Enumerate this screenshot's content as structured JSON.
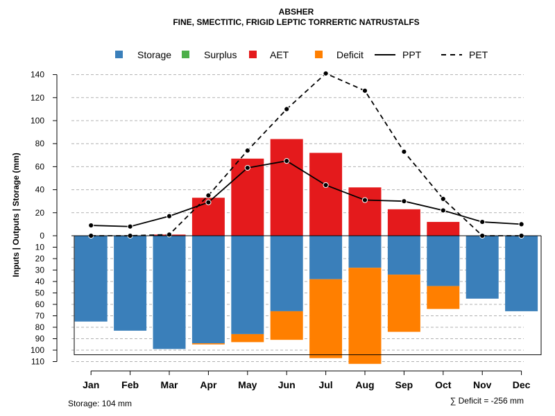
{
  "title": "ABSHER",
  "subtitle": "FINE, SMECTITIC, FRIGID LEPTIC TORRERTIC NATRUSTALFS",
  "ylabel": "Inputs | Outputs | Storage    (mm)",
  "storage_note": "Storage: 104 mm",
  "deficit_note": "∑ Deficit = -256 mm",
  "colors": {
    "storage": "#3a7fba",
    "surplus": "#4daf4a",
    "aet": "#e41a1c",
    "deficit": "#ff7f00",
    "grid": "#b0b0b0"
  },
  "chart_data": {
    "type": "bar",
    "title": "ABSHER",
    "subtitle": "FINE, SMECTITIC, FRIGID LEPTIC TORRERTIC NATRUSTALFS",
    "categories": [
      "Jan",
      "Feb",
      "Mar",
      "Apr",
      "May",
      "Jun",
      "Jul",
      "Aug",
      "Sep",
      "Oct",
      "Nov",
      "Dec"
    ],
    "legend": [
      {
        "name": "Storage",
        "kind": "box",
        "color": "#3a7fba"
      },
      {
        "name": "Surplus",
        "kind": "box",
        "color": "#4daf4a"
      },
      {
        "name": "AET",
        "kind": "box",
        "color": "#e41a1c"
      },
      {
        "name": "Deficit",
        "kind": "box",
        "color": "#ff7f00"
      },
      {
        "name": "PPT",
        "kind": "solid",
        "color": "#000000"
      },
      {
        "name": "PET",
        "kind": "dashed",
        "color": "#000000"
      }
    ],
    "upper_axis": {
      "ticks": [
        0,
        20,
        40,
        60,
        80,
        100,
        120,
        140
      ],
      "range": [
        0,
        140
      ]
    },
    "lower_axis": {
      "ticks": [
        0,
        10,
        20,
        30,
        40,
        50,
        60,
        70,
        80,
        90,
        100,
        110
      ],
      "range": [
        0,
        110
      ]
    },
    "aet": [
      0,
      0,
      1,
      33,
      67,
      84,
      72,
      42,
      23,
      12,
      0,
      0
    ],
    "surplus": [
      0,
      0,
      0,
      0,
      0,
      0,
      0,
      0,
      0,
      0,
      0,
      0
    ],
    "storage": [
      75,
      83,
      99,
      94,
      86,
      66,
      38,
      28,
      34,
      44,
      55,
      66
    ],
    "deficit": [
      0,
      0,
      0,
      1,
      7,
      25,
      69,
      84,
      50,
      20,
      0,
      0
    ],
    "ppt": [
      9,
      8,
      17,
      29,
      59,
      65,
      44,
      31,
      30,
      22,
      12,
      10
    ],
    "pet": [
      0,
      0,
      1,
      35,
      74,
      110,
      141,
      126,
      73,
      32,
      0,
      0
    ],
    "storage_capacity": 104,
    "total_deficit": -256
  }
}
